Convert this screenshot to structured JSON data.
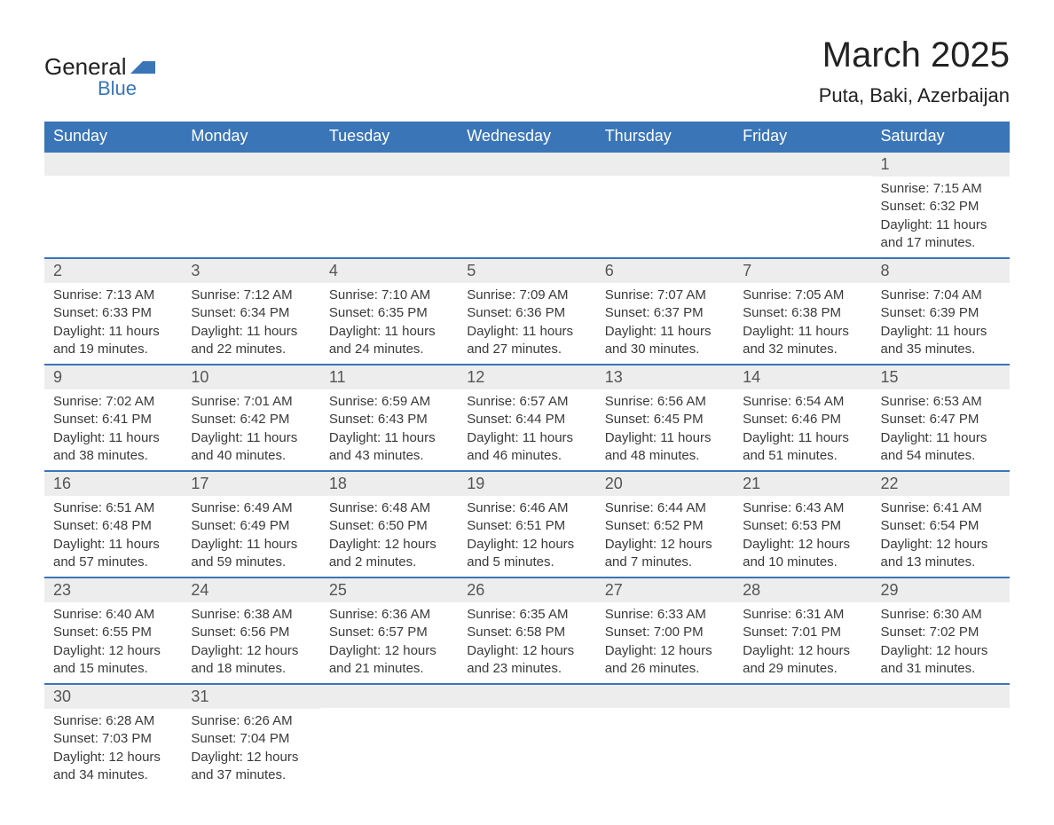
{
  "logo": {
    "text1": "General",
    "text2": "Blue"
  },
  "title": "March 2025",
  "location": "Puta, Baki, Azerbaijan",
  "colors": {
    "header_bg": "#3a75b8",
    "header_text": "#ffffff",
    "daynum_bg": "#ededed",
    "daynum_text": "#555555",
    "body_text": "#3a3a3a",
    "row_divider": "#3a75b8",
    "page_bg": "#ffffff"
  },
  "fonts": {
    "title_size_pt": 30,
    "location_size_pt": 16,
    "header_size_pt": 14,
    "daynum_size_pt": 14,
    "body_size_pt": 11
  },
  "columns": [
    "Sunday",
    "Monday",
    "Tuesday",
    "Wednesday",
    "Thursday",
    "Friday",
    "Saturday"
  ],
  "weeks": [
    [
      {
        "day": "",
        "sunrise": "",
        "sunset": "",
        "daylight": ""
      },
      {
        "day": "",
        "sunrise": "",
        "sunset": "",
        "daylight": ""
      },
      {
        "day": "",
        "sunrise": "",
        "sunset": "",
        "daylight": ""
      },
      {
        "day": "",
        "sunrise": "",
        "sunset": "",
        "daylight": ""
      },
      {
        "day": "",
        "sunrise": "",
        "sunset": "",
        "daylight": ""
      },
      {
        "day": "",
        "sunrise": "",
        "sunset": "",
        "daylight": ""
      },
      {
        "day": "1",
        "sunrise": "Sunrise: 7:15 AM",
        "sunset": "Sunset: 6:32 PM",
        "daylight": "Daylight: 11 hours and 17 minutes."
      }
    ],
    [
      {
        "day": "2",
        "sunrise": "Sunrise: 7:13 AM",
        "sunset": "Sunset: 6:33 PM",
        "daylight": "Daylight: 11 hours and 19 minutes."
      },
      {
        "day": "3",
        "sunrise": "Sunrise: 7:12 AM",
        "sunset": "Sunset: 6:34 PM",
        "daylight": "Daylight: 11 hours and 22 minutes."
      },
      {
        "day": "4",
        "sunrise": "Sunrise: 7:10 AM",
        "sunset": "Sunset: 6:35 PM",
        "daylight": "Daylight: 11 hours and 24 minutes."
      },
      {
        "day": "5",
        "sunrise": "Sunrise: 7:09 AM",
        "sunset": "Sunset: 6:36 PM",
        "daylight": "Daylight: 11 hours and 27 minutes."
      },
      {
        "day": "6",
        "sunrise": "Sunrise: 7:07 AM",
        "sunset": "Sunset: 6:37 PM",
        "daylight": "Daylight: 11 hours and 30 minutes."
      },
      {
        "day": "7",
        "sunrise": "Sunrise: 7:05 AM",
        "sunset": "Sunset: 6:38 PM",
        "daylight": "Daylight: 11 hours and 32 minutes."
      },
      {
        "day": "8",
        "sunrise": "Sunrise: 7:04 AM",
        "sunset": "Sunset: 6:39 PM",
        "daylight": "Daylight: 11 hours and 35 minutes."
      }
    ],
    [
      {
        "day": "9",
        "sunrise": "Sunrise: 7:02 AM",
        "sunset": "Sunset: 6:41 PM",
        "daylight": "Daylight: 11 hours and 38 minutes."
      },
      {
        "day": "10",
        "sunrise": "Sunrise: 7:01 AM",
        "sunset": "Sunset: 6:42 PM",
        "daylight": "Daylight: 11 hours and 40 minutes."
      },
      {
        "day": "11",
        "sunrise": "Sunrise: 6:59 AM",
        "sunset": "Sunset: 6:43 PM",
        "daylight": "Daylight: 11 hours and 43 minutes."
      },
      {
        "day": "12",
        "sunrise": "Sunrise: 6:57 AM",
        "sunset": "Sunset: 6:44 PM",
        "daylight": "Daylight: 11 hours and 46 minutes."
      },
      {
        "day": "13",
        "sunrise": "Sunrise: 6:56 AM",
        "sunset": "Sunset: 6:45 PM",
        "daylight": "Daylight: 11 hours and 48 minutes."
      },
      {
        "day": "14",
        "sunrise": "Sunrise: 6:54 AM",
        "sunset": "Sunset: 6:46 PM",
        "daylight": "Daylight: 11 hours and 51 minutes."
      },
      {
        "day": "15",
        "sunrise": "Sunrise: 6:53 AM",
        "sunset": "Sunset: 6:47 PM",
        "daylight": "Daylight: 11 hours and 54 minutes."
      }
    ],
    [
      {
        "day": "16",
        "sunrise": "Sunrise: 6:51 AM",
        "sunset": "Sunset: 6:48 PM",
        "daylight": "Daylight: 11 hours and 57 minutes."
      },
      {
        "day": "17",
        "sunrise": "Sunrise: 6:49 AM",
        "sunset": "Sunset: 6:49 PM",
        "daylight": "Daylight: 11 hours and 59 minutes."
      },
      {
        "day": "18",
        "sunrise": "Sunrise: 6:48 AM",
        "sunset": "Sunset: 6:50 PM",
        "daylight": "Daylight: 12 hours and 2 minutes."
      },
      {
        "day": "19",
        "sunrise": "Sunrise: 6:46 AM",
        "sunset": "Sunset: 6:51 PM",
        "daylight": "Daylight: 12 hours and 5 minutes."
      },
      {
        "day": "20",
        "sunrise": "Sunrise: 6:44 AM",
        "sunset": "Sunset: 6:52 PM",
        "daylight": "Daylight: 12 hours and 7 minutes."
      },
      {
        "day": "21",
        "sunrise": "Sunrise: 6:43 AM",
        "sunset": "Sunset: 6:53 PM",
        "daylight": "Daylight: 12 hours and 10 minutes."
      },
      {
        "day": "22",
        "sunrise": "Sunrise: 6:41 AM",
        "sunset": "Sunset: 6:54 PM",
        "daylight": "Daylight: 12 hours and 13 minutes."
      }
    ],
    [
      {
        "day": "23",
        "sunrise": "Sunrise: 6:40 AM",
        "sunset": "Sunset: 6:55 PM",
        "daylight": "Daylight: 12 hours and 15 minutes."
      },
      {
        "day": "24",
        "sunrise": "Sunrise: 6:38 AM",
        "sunset": "Sunset: 6:56 PM",
        "daylight": "Daylight: 12 hours and 18 minutes."
      },
      {
        "day": "25",
        "sunrise": "Sunrise: 6:36 AM",
        "sunset": "Sunset: 6:57 PM",
        "daylight": "Daylight: 12 hours and 21 minutes."
      },
      {
        "day": "26",
        "sunrise": "Sunrise: 6:35 AM",
        "sunset": "Sunset: 6:58 PM",
        "daylight": "Daylight: 12 hours and 23 minutes."
      },
      {
        "day": "27",
        "sunrise": "Sunrise: 6:33 AM",
        "sunset": "Sunset: 7:00 PM",
        "daylight": "Daylight: 12 hours and 26 minutes."
      },
      {
        "day": "28",
        "sunrise": "Sunrise: 6:31 AM",
        "sunset": "Sunset: 7:01 PM",
        "daylight": "Daylight: 12 hours and 29 minutes."
      },
      {
        "day": "29",
        "sunrise": "Sunrise: 6:30 AM",
        "sunset": "Sunset: 7:02 PM",
        "daylight": "Daylight: 12 hours and 31 minutes."
      }
    ],
    [
      {
        "day": "30",
        "sunrise": "Sunrise: 6:28 AM",
        "sunset": "Sunset: 7:03 PM",
        "daylight": "Daylight: 12 hours and 34 minutes."
      },
      {
        "day": "31",
        "sunrise": "Sunrise: 6:26 AM",
        "sunset": "Sunset: 7:04 PM",
        "daylight": "Daylight: 12 hours and 37 minutes."
      },
      {
        "day": "",
        "sunrise": "",
        "sunset": "",
        "daylight": ""
      },
      {
        "day": "",
        "sunrise": "",
        "sunset": "",
        "daylight": ""
      },
      {
        "day": "",
        "sunrise": "",
        "sunset": "",
        "daylight": ""
      },
      {
        "day": "",
        "sunrise": "",
        "sunset": "",
        "daylight": ""
      },
      {
        "day": "",
        "sunrise": "",
        "sunset": "",
        "daylight": ""
      }
    ]
  ]
}
